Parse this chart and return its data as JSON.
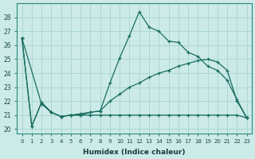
{
  "xlabel": "Humidex (Indice chaleur)",
  "bg_color": "#cceae8",
  "grid_color": "#aad8d5",
  "line_color": "#1a6e60",
  "xlim": [
    -0.5,
    23.5
  ],
  "ylim": [
    19.7,
    29.0
  ],
  "xticks": [
    0,
    1,
    2,
    3,
    4,
    5,
    6,
    7,
    8,
    9,
    10,
    11,
    12,
    13,
    14,
    15,
    16,
    17,
    18,
    19,
    20,
    21,
    22,
    23
  ],
  "yticks": [
    20,
    21,
    22,
    23,
    24,
    25,
    26,
    27,
    28
  ],
  "line1_x": [
    0,
    1,
    2,
    3,
    4,
    5,
    6,
    7,
    8,
    9,
    10,
    11,
    12,
    13,
    14,
    15,
    16,
    17,
    18,
    19,
    20,
    21,
    22,
    23
  ],
  "line1_y": [
    26.5,
    20.2,
    21.9,
    21.2,
    20.9,
    21.0,
    21.0,
    21.2,
    21.3,
    23.3,
    25.1,
    26.7,
    28.4,
    27.3,
    27.0,
    26.3,
    26.2,
    25.5,
    25.2,
    24.5,
    24.2,
    23.5,
    22.1,
    20.8
  ],
  "line2_x": [
    0,
    2,
    3,
    4,
    5,
    6,
    7,
    8,
    9,
    10,
    11,
    12,
    13,
    14,
    15,
    16,
    17,
    18,
    19,
    20,
    21,
    22,
    23
  ],
  "line2_y": [
    26.5,
    21.8,
    21.2,
    20.9,
    21.0,
    21.1,
    21.2,
    21.3,
    22.0,
    22.5,
    23.0,
    23.3,
    23.7,
    24.0,
    24.2,
    24.5,
    24.7,
    24.9,
    25.0,
    24.8,
    24.2,
    22.0,
    20.8
  ],
  "line3_x": [
    0,
    1,
    2,
    3,
    4,
    5,
    6,
    7,
    8,
    9,
    10,
    11,
    12,
    13,
    14,
    15,
    16,
    17,
    18,
    19,
    20,
    21,
    22,
    23
  ],
  "line3_y": [
    26.5,
    20.2,
    21.9,
    21.2,
    20.9,
    21.0,
    21.0,
    21.0,
    21.0,
    21.0,
    21.0,
    21.0,
    21.0,
    21.0,
    21.0,
    21.0,
    21.0,
    21.0,
    21.0,
    21.0,
    21.0,
    21.0,
    21.0,
    20.8
  ]
}
